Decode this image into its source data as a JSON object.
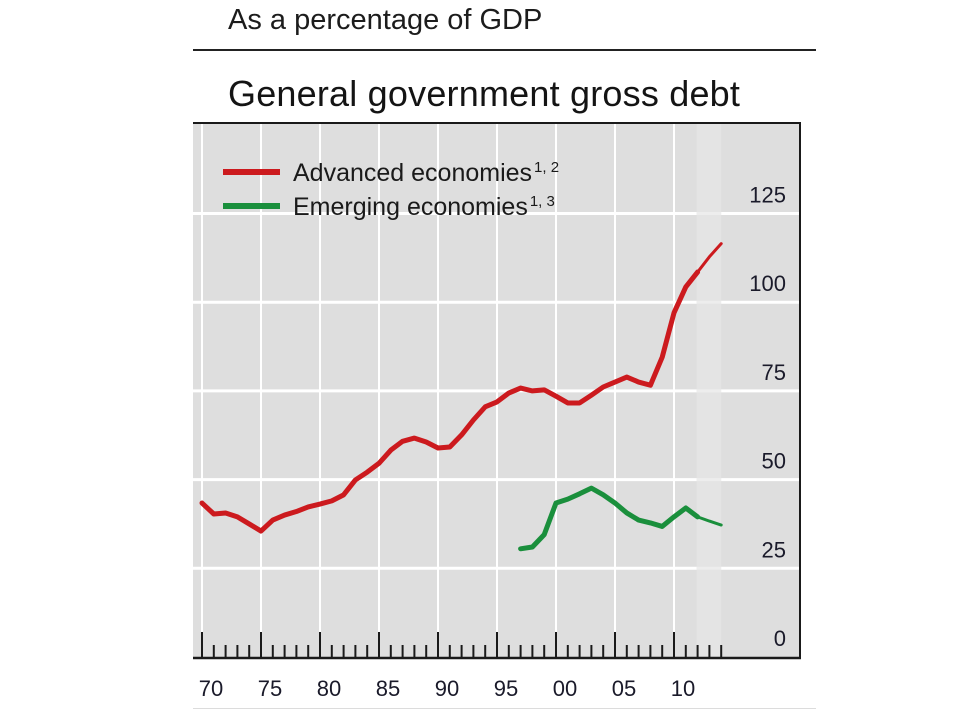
{
  "header": {
    "subtitle": "As a percentage of GDP",
    "title": "General government gross debt"
  },
  "colors": {
    "advanced": "#cc1a1e",
    "emerging": "#1a8f3c",
    "plot_background": "#dedede",
    "projection_background": "#e4e4e4",
    "gridline": "#ffffff",
    "axis": "#1a1a1a"
  },
  "chart_data": {
    "type": "line",
    "title": "General government gross debt",
    "subtitle": "As a percentage of GDP",
    "xlabel": "",
    "ylabel": "",
    "xlim": [
      1969.2,
      2020.8
    ],
    "ylim": [
      0,
      137.5
    ],
    "y_axis_side": "right",
    "grid": true,
    "legend_position": "top-left",
    "x_ticks": [
      1970,
      1975,
      1980,
      1985,
      1990,
      1995,
      2000,
      2005,
      2010
    ],
    "x_tick_labels": [
      "70",
      "75",
      "80",
      "85",
      "90",
      "95",
      "00",
      "05",
      "10"
    ],
    "x_minor_ticks_range": [
      1970,
      2014
    ],
    "y_ticks": [
      0,
      25,
      50,
      75,
      100,
      125
    ],
    "y_tick_labels": [
      "0",
      "25",
      "50",
      "75",
      "100",
      "125"
    ],
    "projection_start": 2012,
    "series": [
      {
        "name": "Advanced economies",
        "footnote": "1, 2",
        "color_key": "advanced",
        "x": [
          1970,
          1971,
          1972,
          1973,
          1974,
          1975,
          1976,
          1977,
          1978,
          1979,
          1980,
          1981,
          1982,
          1983,
          1984,
          1985,
          1986,
          1987,
          1988,
          1989,
          1990,
          1991,
          1992,
          1993,
          1994,
          1995,
          1996,
          1997,
          1998,
          1999,
          2000,
          2001,
          2002,
          2003,
          2004,
          2005,
          2006,
          2007,
          2008,
          2009,
          2010,
          2011,
          2012,
          2013,
          2014
        ],
        "values": [
          43.4,
          40.3,
          40.6,
          39.5,
          37.5,
          35.5,
          38.6,
          40.0,
          41.0,
          42.3,
          43.1,
          44.0,
          45.7,
          49.9,
          52.1,
          54.6,
          58.3,
          60.8,
          61.7,
          60.6,
          58.9,
          59.2,
          62.6,
          66.8,
          70.5,
          71.9,
          74.4,
          75.8,
          75.0,
          75.3,
          73.5,
          71.6,
          71.6,
          73.8,
          76.1,
          77.5,
          78.9,
          77.5,
          76.6,
          84.5,
          97.0,
          104.3,
          108.5,
          112.8,
          116.5
        ]
      },
      {
        "name": "Emerging economies",
        "footnote": "1, 3",
        "color_key": "emerging",
        "x": [
          1997,
          1998,
          1999,
          2000,
          2001,
          2002,
          2003,
          2004,
          2005,
          2006,
          2007,
          2008,
          2009,
          2010,
          2011,
          2012,
          2013,
          2014
        ],
        "values": [
          30.5,
          31.0,
          34.5,
          43.4,
          44.5,
          46.0,
          47.6,
          45.7,
          43.4,
          40.6,
          38.6,
          37.8,
          36.8,
          39.5,
          42.0,
          39.5,
          38.3,
          37.2
        ]
      }
    ]
  }
}
